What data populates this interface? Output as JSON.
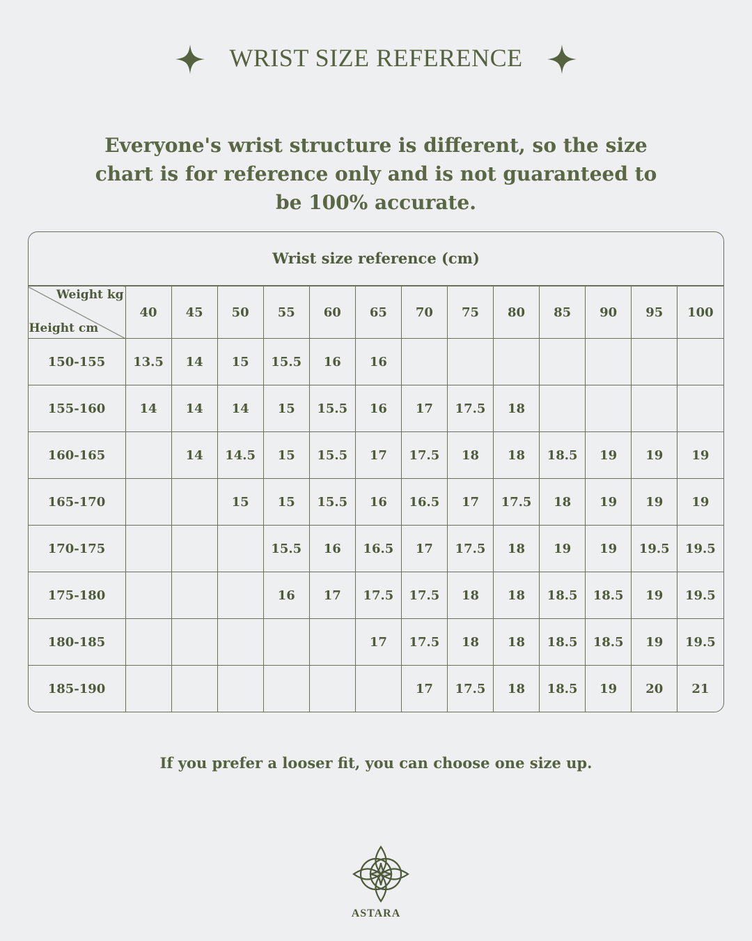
{
  "header": {
    "title": "WRIST SIZE REFERENCE",
    "icon": "sparkle-star-icon"
  },
  "intro": "Everyone's wrist structure is different, so the size chart is for reference only and is not guaranteed to be 100% accurate.",
  "chart_data": {
    "type": "table",
    "title": "Wrist size reference (cm)",
    "column_axis_label": "Weight kg",
    "row_axis_label": "Height cm",
    "columns": [
      "40",
      "45",
      "50",
      "55",
      "60",
      "65",
      "70",
      "75",
      "80",
      "85",
      "90",
      "95",
      "100"
    ],
    "rows": [
      {
        "label": "150-155",
        "values": [
          "13.5",
          "14",
          "15",
          "15.5",
          "16",
          "16",
          "",
          "",
          "",
          "",
          "",
          "",
          ""
        ]
      },
      {
        "label": "155-160",
        "values": [
          "14",
          "14",
          "14",
          "15",
          "15.5",
          "16",
          "17",
          "17.5",
          "18",
          "",
          "",
          "",
          ""
        ]
      },
      {
        "label": "160-165",
        "values": [
          "",
          "14",
          "14.5",
          "15",
          "15.5",
          "17",
          "17.5",
          "18",
          "18",
          "18.5",
          "19",
          "19",
          "19"
        ]
      },
      {
        "label": "165-170",
        "values": [
          "",
          "",
          "15",
          "15",
          "15.5",
          "16",
          "16.5",
          "17",
          "17.5",
          "18",
          "19",
          "19",
          "19"
        ]
      },
      {
        "label": "170-175",
        "values": [
          "",
          "",
          "",
          "15.5",
          "16",
          "16.5",
          "17",
          "17.5",
          "18",
          "19",
          "19",
          "19.5",
          "19.5"
        ]
      },
      {
        "label": "175-180",
        "values": [
          "",
          "",
          "",
          "16",
          "17",
          "17.5",
          "17.5",
          "18",
          "18",
          "18.5",
          "18.5",
          "19",
          "19.5"
        ]
      },
      {
        "label": "180-185",
        "values": [
          "",
          "",
          "",
          "",
          "",
          "17",
          "17.5",
          "18",
          "18",
          "18.5",
          "18.5",
          "19",
          "19.5"
        ]
      },
      {
        "label": "185-190",
        "values": [
          "",
          "",
          "",
          "",
          "",
          "",
          "17",
          "17.5",
          "18",
          "18.5",
          "19",
          "20",
          "21"
        ]
      }
    ]
  },
  "note": "If you prefer a looser fit, you can choose one size up.",
  "brand": {
    "name": "ASTARA",
    "icon": "compass-star-logo-icon"
  },
  "colors": {
    "background": "#eeeff1",
    "text": "#515c3c",
    "lines": "#6c6f60"
  }
}
